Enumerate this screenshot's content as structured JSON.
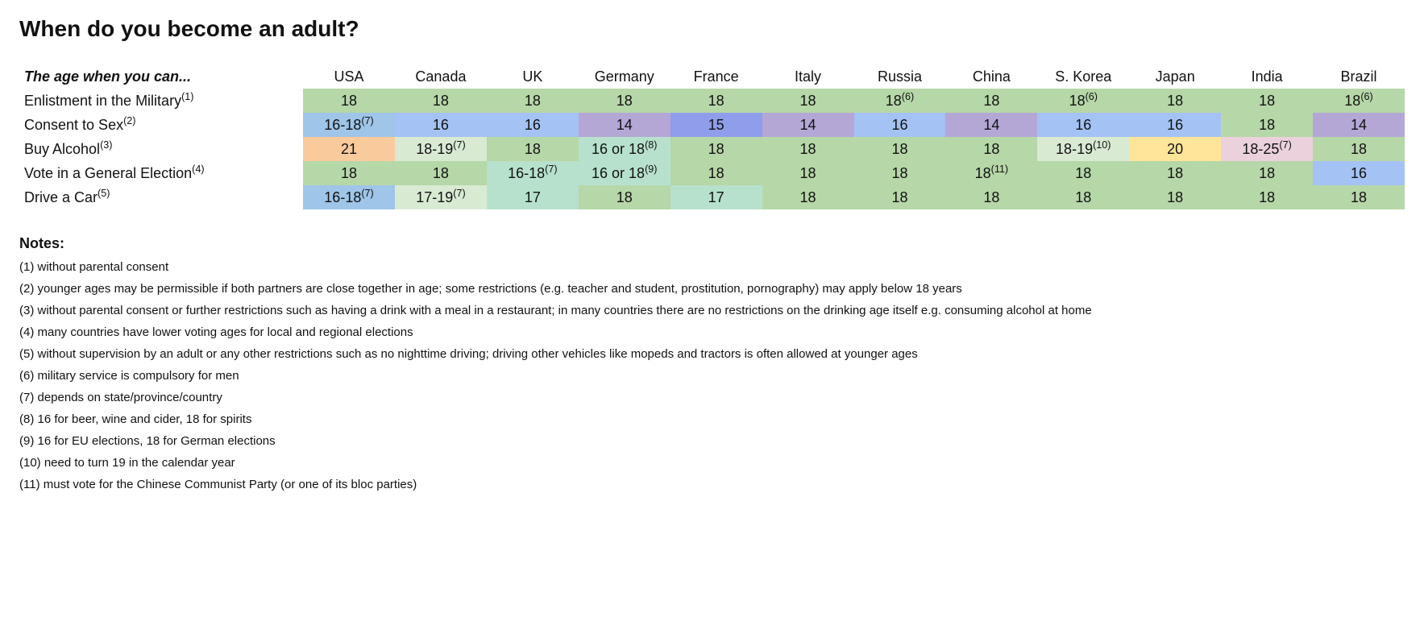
{
  "title": "When do you become an adult?",
  "subtitle": "The age when you can...",
  "colors": {
    "green": "#b6d7a8",
    "blue": "#a4c2f4",
    "purple": "#b4a7d6",
    "darkpurple": "#8e9eeb",
    "orange": "#f9cb9c",
    "yellowgreen": "#d9ead3",
    "yellow": "#ffe599",
    "pink": "#ead1dc",
    "teal": "#b7e1cd",
    "bluegray": "#9fc5e8"
  },
  "countries": [
    "USA",
    "Canada",
    "UK",
    "Germany",
    "France",
    "Italy",
    "Russia",
    "China",
    "S. Korea",
    "Japan",
    "India",
    "Brazil"
  ],
  "rows": [
    {
      "label": "Enlistment in the Military",
      "sup": "(1)",
      "cells": [
        {
          "v": "18",
          "c": "green"
        },
        {
          "v": "18",
          "c": "green"
        },
        {
          "v": "18",
          "c": "green"
        },
        {
          "v": "18",
          "c": "green"
        },
        {
          "v": "18",
          "c": "green"
        },
        {
          "v": "18",
          "c": "green"
        },
        {
          "v": "18",
          "sup": "(6)",
          "c": "green"
        },
        {
          "v": "18",
          "c": "green"
        },
        {
          "v": "18",
          "sup": "(6)",
          "c": "green"
        },
        {
          "v": "18",
          "c": "green"
        },
        {
          "v": "18",
          "c": "green"
        },
        {
          "v": "18",
          "sup": "(6)",
          "c": "green"
        }
      ]
    },
    {
      "label": "Consent to Sex",
      "sup": "(2)",
      "cells": [
        {
          "v": "16-18",
          "sup": "(7)",
          "c": "bluegray"
        },
        {
          "v": "16",
          "c": "blue"
        },
        {
          "v": "16",
          "c": "blue"
        },
        {
          "v": "14",
          "c": "purple"
        },
        {
          "v": "15",
          "c": "darkpurple"
        },
        {
          "v": "14",
          "c": "purple"
        },
        {
          "v": "16",
          "c": "blue"
        },
        {
          "v": "14",
          "c": "purple"
        },
        {
          "v": "16",
          "c": "blue"
        },
        {
          "v": "16",
          "c": "blue"
        },
        {
          "v": "18",
          "c": "green"
        },
        {
          "v": "14",
          "c": "purple"
        }
      ]
    },
    {
      "label": "Buy Alcohol",
      "sup": "(3)",
      "cells": [
        {
          "v": "21",
          "c": "orange"
        },
        {
          "v": "18-19",
          "sup": "(7)",
          "c": "yellowgreen"
        },
        {
          "v": "18",
          "c": "green"
        },
        {
          "v": "16 or 18",
          "sup": "(8)",
          "c": "teal"
        },
        {
          "v": "18",
          "c": "green"
        },
        {
          "v": "18",
          "c": "green"
        },
        {
          "v": "18",
          "c": "green"
        },
        {
          "v": "18",
          "c": "green"
        },
        {
          "v": "18-19",
          "sup": "(10)",
          "c": "yellowgreen"
        },
        {
          "v": "20",
          "c": "yellow"
        },
        {
          "v": "18-25",
          "sup": "(7)",
          "c": "pink"
        },
        {
          "v": "18",
          "c": "green"
        }
      ]
    },
    {
      "label": "Vote in a General Election",
      "sup": "(4)",
      "cells": [
        {
          "v": "18",
          "c": "green"
        },
        {
          "v": "18",
          "c": "green"
        },
        {
          "v": "16-18",
          "sup": "(7)",
          "c": "teal"
        },
        {
          "v": "16 or 18",
          "sup": "(9)",
          "c": "teal"
        },
        {
          "v": "18",
          "c": "green"
        },
        {
          "v": "18",
          "c": "green"
        },
        {
          "v": "18",
          "c": "green"
        },
        {
          "v": "18",
          "sup": "(11)",
          "c": "green"
        },
        {
          "v": "18",
          "c": "green"
        },
        {
          "v": "18",
          "c": "green"
        },
        {
          "v": "18",
          "c": "green"
        },
        {
          "v": "16",
          "c": "blue"
        }
      ]
    },
    {
      "label": "Drive a Car",
      "sup": "(5)",
      "cells": [
        {
          "v": "16-18",
          "sup": "(7)",
          "c": "bluegray"
        },
        {
          "v": "17-19",
          "sup": "(7)",
          "c": "yellowgreen"
        },
        {
          "v": "17",
          "c": "teal"
        },
        {
          "v": "18",
          "c": "green"
        },
        {
          "v": "17",
          "c": "teal"
        },
        {
          "v": "18",
          "c": "green"
        },
        {
          "v": "18",
          "c": "green"
        },
        {
          "v": "18",
          "c": "green"
        },
        {
          "v": "18",
          "c": "green"
        },
        {
          "v": "18",
          "c": "green"
        },
        {
          "v": "18",
          "c": "green"
        },
        {
          "v": "18",
          "c": "green"
        }
      ]
    }
  ],
  "notes_header": "Notes:",
  "notes": [
    "(1) without parental consent",
    "(2) younger ages may be permissible if both partners are close together in age; some restrictions (e.g. teacher and student, prostitution, pornography) may apply below 18 years",
    "(3) without parental consent or further restrictions such as having a drink with a meal in a restaurant; in many countries there are no restrictions on the drinking age itself e.g. consuming alcohol at home",
    "(4) many countries have lower voting ages for local and regional elections",
    "(5) without supervision by an adult or any other restrictions such as no nighttime driving; driving other vehicles like mopeds and tractors is often allowed at younger ages",
    "(6) military service is compulsory for men",
    "(7) depends on state/province/country",
    "(8) 16 for beer, wine and cider, 18 for spirits",
    "(9) 16 for EU elections, 18 for German elections",
    "(10) need to turn 19 in the calendar year",
    "(11) must vote for the Chinese Communist Party (or one of its bloc parties)"
  ]
}
